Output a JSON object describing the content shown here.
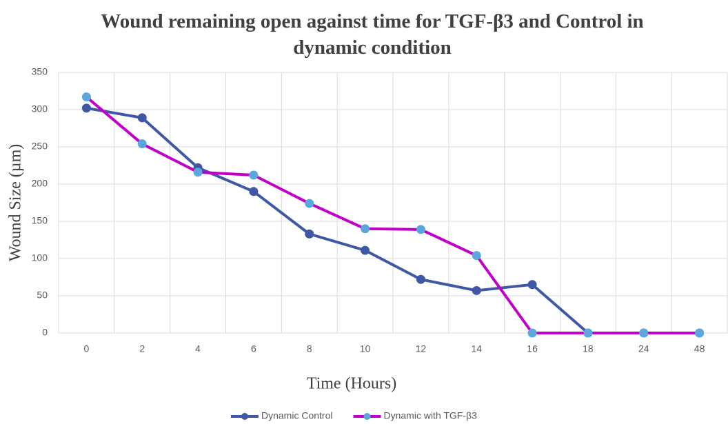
{
  "chart_data": {
    "type": "line",
    "title": "Wound remaining open against time for TGF-β3 and Control in dynamic condition",
    "x_label": "Time (Hours)",
    "y_label": "Wound Size (µm)",
    "categories": [
      "0",
      "2",
      "4",
      "6",
      "8",
      "10",
      "12",
      "14",
      "16",
      "18",
      "24",
      "48"
    ],
    "series": [
      {
        "name": "Dynamic Control",
        "color": "#3f58a6",
        "marker_color": "#3f58a6",
        "values": [
          302,
          289,
          222,
          190,
          133,
          111,
          72,
          57,
          65,
          0,
          0,
          0
        ]
      },
      {
        "name": "Dynamic with TGF-β3",
        "color": "#c000c8",
        "marker_color": "#5ba6dc",
        "values": [
          317,
          254,
          216,
          212,
          174,
          140,
          139,
          104,
          0,
          0,
          0,
          0
        ]
      }
    ],
    "ylim": [
      0,
      350
    ],
    "yticks": [
      0,
      50,
      100,
      150,
      200,
      250,
      300,
      350
    ],
    "grid": true,
    "legend": "bottom"
  }
}
